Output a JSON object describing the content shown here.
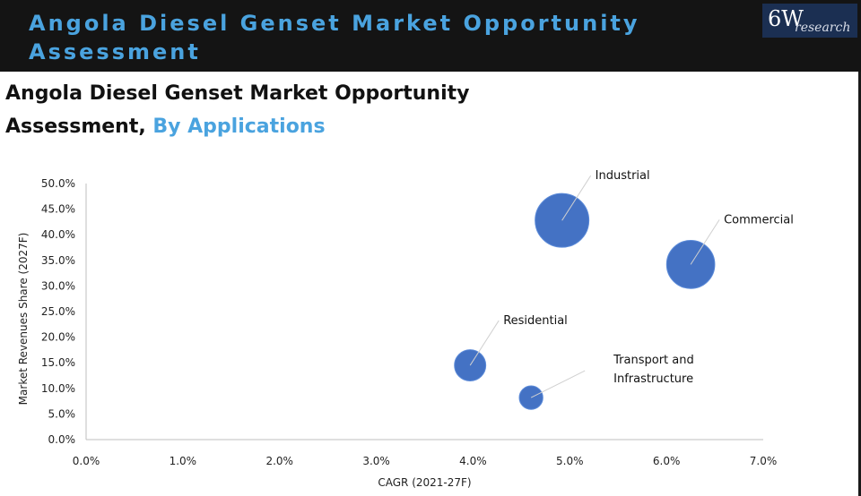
{
  "header": {
    "title": "Angola Diesel Genset Market Opportunity Assessment",
    "logo_mark": "6W",
    "logo_word": "research"
  },
  "subtitle": {
    "main": "Angola Diesel Genset Market Opportunity Assessment, ",
    "accent": "By Applications"
  },
  "colors": {
    "header_bg": "#141414",
    "accent": "#4aa3df",
    "bubble": "#4472c4",
    "logo_bg": "#1b2f52"
  },
  "chart_data": {
    "type": "scatter",
    "subtype": "bubble",
    "title": "",
    "xlabel": "CAGR (2021-27F)",
    "ylabel": "Market Revenues Share (2027F)",
    "xlim": [
      0,
      7
    ],
    "ylim": [
      0,
      50
    ],
    "x_ticks": [
      "0.0%",
      "1.0%",
      "2.0%",
      "3.0%",
      "4.0%",
      "5.0%",
      "6.0%",
      "7.0%"
    ],
    "y_ticks": [
      "0.0%",
      "5.0%",
      "10.0%",
      "15.0%",
      "20.0%",
      "25.0%",
      "30.0%",
      "35.0%",
      "40.0%",
      "45.0%",
      "50.0%"
    ],
    "grid": false,
    "points": [
      {
        "name": "Industrial",
        "lines": [
          "Industrial"
        ],
        "x": 4.92,
        "y": 42.8,
        "size": 42.8,
        "label_pos": "upper-right"
      },
      {
        "name": "Commercial",
        "lines": [
          "Commercial"
        ],
        "x": 6.25,
        "y": 34.2,
        "size": 34.2,
        "label_pos": "upper-right"
      },
      {
        "name": "Residential",
        "lines": [
          "Residential"
        ],
        "x": 3.97,
        "y": 14.5,
        "size": 14.5,
        "label_pos": "upper-right"
      },
      {
        "name": "Transport and Infrastructure",
        "lines": [
          "Transport and",
          "Infrastructure"
        ],
        "x": 4.6,
        "y": 8.2,
        "size": 8.2,
        "label_pos": "right"
      }
    ]
  }
}
